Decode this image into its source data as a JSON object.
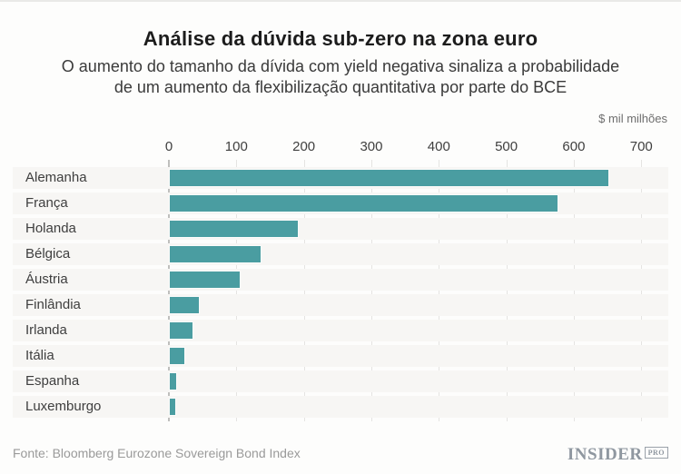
{
  "header": {
    "title": "Análise da dúvida sub-zero na zona euro",
    "subtitle_line1": "O aumento do tamanho da dívida com yield negativa sinaliza a probabilidade",
    "subtitle_line2": "de um aumento da flexibilização quantitativa por parte do BCE",
    "unit_label": "$ mil milhões"
  },
  "chart_data": {
    "type": "bar",
    "orientation": "horizontal",
    "title": "Análise da dúvida sub-zero na zona euro",
    "subtitle": "O aumento do tamanho da dívida com yield negativa sinaliza a probabilidade de um aumento da flexibilização quantitativa por parte do BCE",
    "xlabel": "$ mil milhões",
    "categories": [
      "Alemanha",
      "França",
      "Holanda",
      "Bélgica",
      "Áustria",
      "Finlândia",
      "Irlanda",
      "Itália",
      "Espanha",
      "Luxemburgo"
    ],
    "values": [
      650,
      575,
      190,
      134,
      103,
      43,
      33,
      22,
      9,
      8
    ],
    "x_ticks": [
      0,
      100,
      200,
      300,
      400,
      500,
      600,
      700
    ],
    "xlim": [
      0,
      740
    ],
    "grid": true,
    "legend": false,
    "bar_color": "#4a9da1",
    "row_band_color": "#f7f6f4",
    "gridline_color": "#e5e4e2",
    "axis_line_color": "#bfbfbd"
  },
  "footer": {
    "source": "Fonte: Bloomberg Eurozone Sovereign Bond Index",
    "logo_text": "INSIDER",
    "logo_badge": "PRO"
  }
}
